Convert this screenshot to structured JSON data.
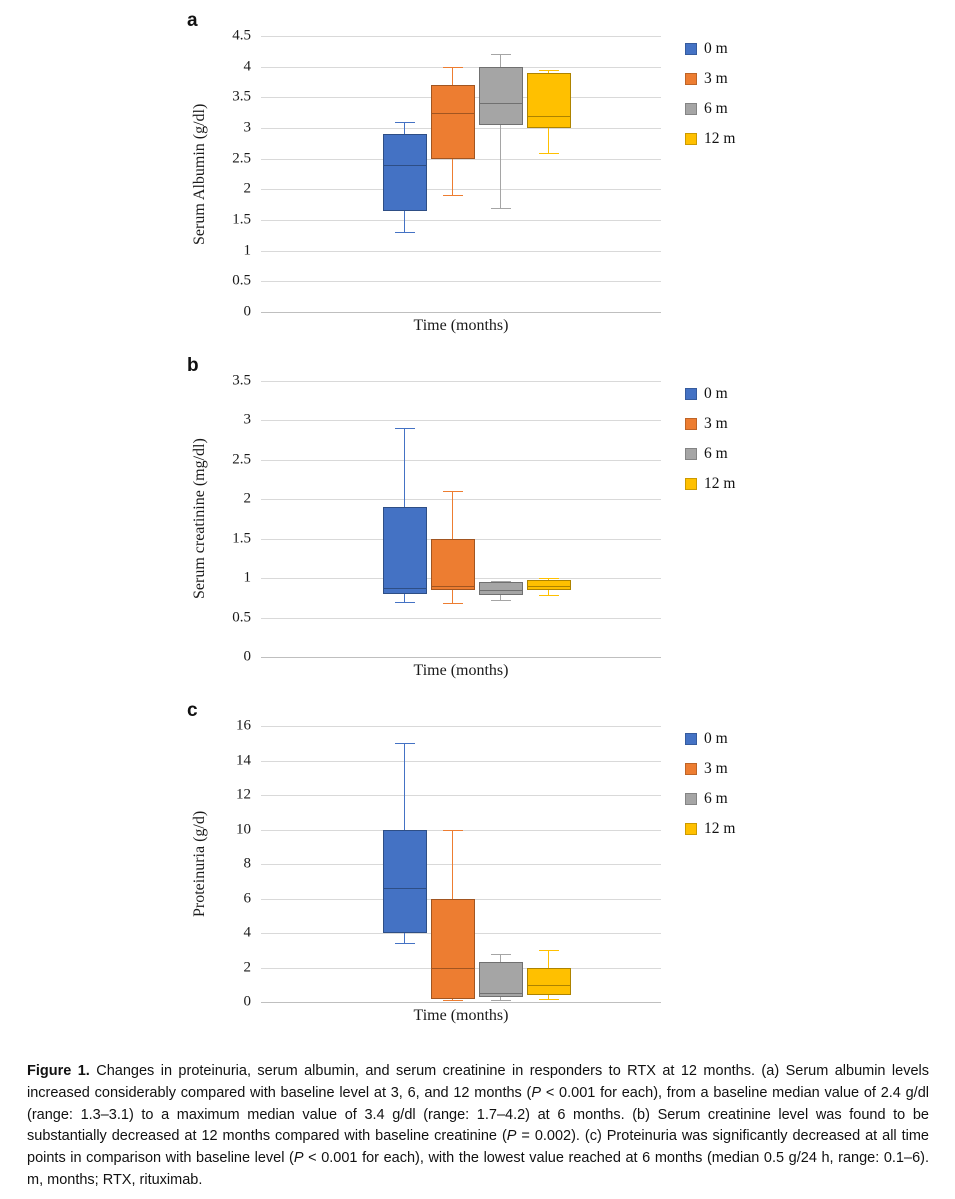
{
  "figure": {
    "caption": {
      "runs": [
        {
          "text": "Figure 1.",
          "bold": true
        },
        {
          "text": " Changes in proteinuria, serum albumin, and serum creatinine in responders to RTX at 12 months. (a) Serum albumin levels increased considerably compared with baseline level at 3, 6, and 12 months ("
        },
        {
          "text": "P",
          "italic": true
        },
        {
          "text": " < 0.001 for each), from a baseline median value of 2.4 g/dl (range: 1.3–3.1) to a maximum median value of 3.4 g/dl (range: 1.7–4.2) at 6 months. (b) Serum creatinine level was found to be substantially decreased at 12 months compared with baseline creatinine ("
        },
        {
          "text": "P",
          "italic": true
        },
        {
          "text": " = 0.002). (c) Proteinuria was significantly decreased at all time points in comparison with baseline level ("
        },
        {
          "text": "P",
          "italic": true
        },
        {
          "text": " < 0.001 for each), with the lowest value reached at 6 months (median 0.5 g/24 h, range: 0.1–6). m, months; RTX, rituximab."
        }
      ]
    }
  },
  "chart_data": [
    {
      "type": "box",
      "panel": "a",
      "title": "",
      "xlabel": "Time (months)",
      "ylabel": "Serum Albumin (g/dl)",
      "ylim": [
        0,
        4.5
      ],
      "yticks": [
        0,
        0.5,
        1,
        1.5,
        2,
        2.5,
        3,
        3.5,
        4,
        4.5
      ],
      "grid": true,
      "legend_position": "right",
      "categories": [
        "Time (months)"
      ],
      "series": [
        {
          "name": "0 m",
          "color": "#4472C4",
          "whisker_low": 1.3,
          "q1": 1.65,
          "median": 2.4,
          "q3": 2.9,
          "whisker_high": 3.1
        },
        {
          "name": "3 m",
          "color": "#ED7D31",
          "whisker_low": 1.9,
          "q1": 2.5,
          "median": 3.25,
          "q3": 3.7,
          "whisker_high": 4.0
        },
        {
          "name": "6 m",
          "color": "#A5A5A5",
          "whisker_low": 1.7,
          "q1": 3.05,
          "median": 3.4,
          "q3": 4.0,
          "whisker_high": 4.2
        },
        {
          "name": "12 m",
          "color": "#FFC000",
          "whisker_low": 2.6,
          "q1": 3.0,
          "median": 3.2,
          "q3": 3.9,
          "whisker_high": 3.95
        }
      ]
    },
    {
      "type": "box",
      "panel": "b",
      "title": "",
      "xlabel": "Time (months)",
      "ylabel": "Serum creatinine (mg/dl)",
      "ylim": [
        0,
        3.5
      ],
      "yticks": [
        0,
        0.5,
        1,
        1.5,
        2,
        2.5,
        3,
        3.5
      ],
      "grid": true,
      "legend_position": "right",
      "categories": [
        "Time (months)"
      ],
      "series": [
        {
          "name": "0 m",
          "color": "#4472C4",
          "whisker_low": 0.7,
          "q1": 0.8,
          "median": 0.87,
          "q3": 1.9,
          "whisker_high": 2.9
        },
        {
          "name": "3 m",
          "color": "#ED7D31",
          "whisker_low": 0.68,
          "q1": 0.85,
          "median": 0.9,
          "q3": 1.5,
          "whisker_high": 2.1
        },
        {
          "name": "6 m",
          "color": "#A5A5A5",
          "whisker_low": 0.72,
          "q1": 0.78,
          "median": 0.85,
          "q3": 0.95,
          "whisker_high": 0.97
        },
        {
          "name": "12 m",
          "color": "#FFC000",
          "whisker_low": 0.78,
          "q1": 0.85,
          "median": 0.9,
          "q3": 0.98,
          "whisker_high": 1.0
        }
      ]
    },
    {
      "type": "box",
      "panel": "c",
      "title": "",
      "xlabel": "Time (months)",
      "ylabel": "Proteinuria (g/d)",
      "ylim": [
        0,
        16
      ],
      "yticks": [
        0,
        2,
        4,
        6,
        8,
        10,
        12,
        14,
        16
      ],
      "grid": true,
      "legend_position": "right",
      "categories": [
        "Time (months)"
      ],
      "series": [
        {
          "name": "0 m",
          "color": "#4472C4",
          "whisker_low": 3.4,
          "q1": 4.0,
          "median": 6.6,
          "q3": 10.0,
          "whisker_high": 15.0
        },
        {
          "name": "3 m",
          "color": "#ED7D31",
          "whisker_low": 0.1,
          "q1": 0.2,
          "median": 2.0,
          "q3": 6.0,
          "whisker_high": 10.0
        },
        {
          "name": "6 m",
          "color": "#A5A5A5",
          "whisker_low": 0.1,
          "q1": 0.3,
          "median": 0.5,
          "q3": 2.3,
          "whisker_high": 2.8
        },
        {
          "name": "12 m",
          "color": "#FFC000",
          "whisker_low": 0.2,
          "q1": 0.4,
          "median": 1.0,
          "q3": 2.0,
          "whisker_high": 3.0
        }
      ]
    }
  ]
}
